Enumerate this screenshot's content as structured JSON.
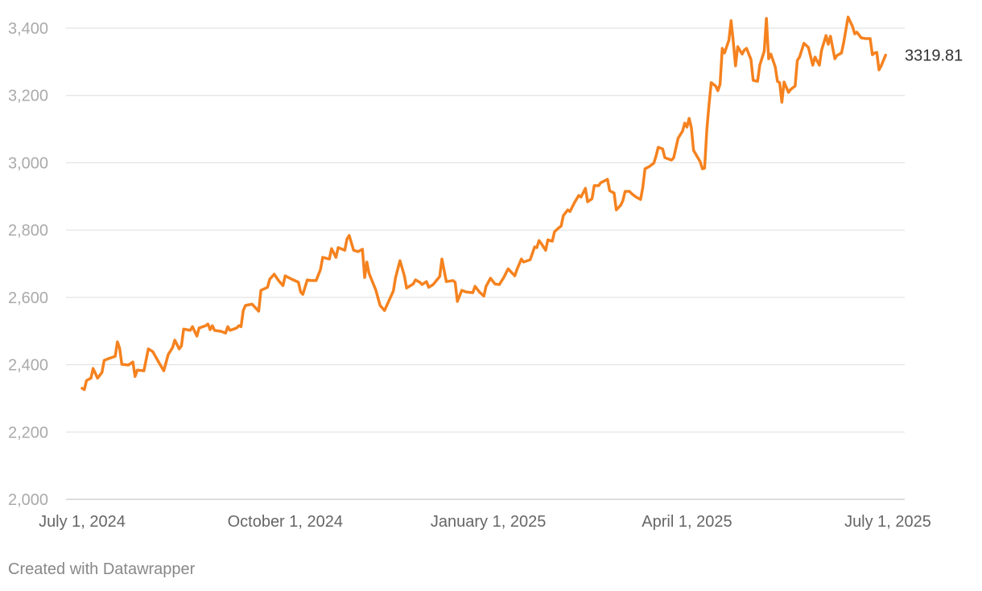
{
  "chart_data": {
    "type": "line",
    "credit": "Created with Datawrapper",
    "x": [
      "2024-07-01",
      "2024-07-02",
      "2024-07-03",
      "2024-07-05",
      "2024-07-06",
      "2024-07-08",
      "2024-07-10",
      "2024-07-11",
      "2024-07-13",
      "2024-07-16",
      "2024-07-17",
      "2024-07-18",
      "2024-07-19",
      "2024-07-22",
      "2024-07-24",
      "2024-07-25",
      "2024-07-26",
      "2024-07-29",
      "2024-07-31",
      "2024-08-02",
      "2024-08-05",
      "2024-08-07",
      "2024-08-09",
      "2024-08-11",
      "2024-08-12",
      "2024-08-14",
      "2024-08-15",
      "2024-08-16",
      "2024-08-19",
      "2024-08-20",
      "2024-08-22",
      "2024-08-23",
      "2024-08-26",
      "2024-08-27",
      "2024-08-28",
      "2024-08-29",
      "2024-08-30",
      "2024-09-02",
      "2024-09-04",
      "2024-09-05",
      "2024-09-06",
      "2024-09-09",
      "2024-09-10",
      "2024-09-11",
      "2024-09-12",
      "2024-09-13",
      "2024-09-16",
      "2024-09-19",
      "2024-09-20",
      "2024-09-23",
      "2024-09-24",
      "2024-09-26",
      "2024-09-28",
      "2024-09-30",
      "2024-10-01",
      "2024-10-04",
      "2024-10-07",
      "2024-10-08",
      "2024-10-09",
      "2024-10-11",
      "2024-10-13",
      "2024-10-15",
      "2024-10-17",
      "2024-10-18",
      "2024-10-21",
      "2024-10-22",
      "2024-10-24",
      "2024-10-25",
      "2024-10-28",
      "2024-10-29",
      "2024-10-30",
      "2024-11-01",
      "2024-11-03",
      "2024-11-05",
      "2024-11-06",
      "2024-11-07",
      "2024-11-08",
      "2024-11-11",
      "2024-11-13",
      "2024-11-15",
      "2024-11-17",
      "2024-11-19",
      "2024-11-20",
      "2024-11-22",
      "2024-11-24",
      "2024-11-25",
      "2024-11-28",
      "2024-11-29",
      "2024-12-01",
      "2024-12-02",
      "2024-12-04",
      "2024-12-05",
      "2024-12-07",
      "2024-12-10",
      "2024-12-11",
      "2024-12-13",
      "2024-12-16",
      "2024-12-17",
      "2024-12-18",
      "2024-12-20",
      "2024-12-22",
      "2024-12-25",
      "2024-12-26",
      "2024-12-28",
      "2024-12-30",
      "2024-12-31",
      "2025-01-02",
      "2025-01-04",
      "2025-01-06",
      "2025-01-08",
      "2025-01-10",
      "2025-01-13",
      "2025-01-14",
      "2025-01-16",
      "2025-01-17",
      "2025-01-20",
      "2025-01-22",
      "2025-01-23",
      "2025-01-24",
      "2025-01-25",
      "2025-01-27",
      "2025-01-28",
      "2025-01-30",
      "2025-01-31",
      "2025-02-02",
      "2025-02-03",
      "2025-02-04",
      "2025-02-06",
      "2025-02-07",
      "2025-02-09",
      "2025-02-11",
      "2025-02-12",
      "2025-02-14",
      "2025-02-15",
      "2025-02-17",
      "2025-02-18",
      "2025-02-20",
      "2025-02-21",
      "2025-02-22",
      "2025-02-24",
      "2025-02-25",
      "2025-02-27",
      "2025-02-28",
      "2025-03-02",
      "2025-03-03",
      "2025-03-04",
      "2025-03-06",
      "2025-03-07",
      "2025-03-09",
      "2025-03-11",
      "2025-03-12",
      "2025-03-13",
      "2025-03-15",
      "2025-03-17",
      "2025-03-18",
      "2025-03-19",
      "2025-03-21",
      "2025-03-22",
      "2025-03-25",
      "2025-03-26",
      "2025-03-28",
      "2025-03-30",
      "2025-03-31",
      "2025-04-01",
      "2025-04-02",
      "2025-04-03",
      "2025-04-04",
      "2025-04-07",
      "2025-04-08",
      "2025-04-09",
      "2025-04-10",
      "2025-04-11",
      "2025-04-12",
      "2025-04-14",
      "2025-04-15",
      "2025-04-16",
      "2025-04-17",
      "2025-04-18",
      "2025-04-20",
      "2025-04-21",
      "2025-04-22",
      "2025-04-23",
      "2025-04-24",
      "2025-04-26",
      "2025-04-27",
      "2025-04-28",
      "2025-04-30",
      "2025-05-01",
      "2025-05-03",
      "2025-05-04",
      "2025-05-06",
      "2025-05-07",
      "2025-05-08",
      "2025-05-09",
      "2025-05-11",
      "2025-05-12",
      "2025-05-13",
      "2025-05-14",
      "2025-05-15",
      "2025-05-17",
      "2025-05-18",
      "2025-05-20",
      "2025-05-21",
      "2025-05-22",
      "2025-05-24",
      "2025-05-26",
      "2025-05-28",
      "2025-05-29",
      "2025-05-31",
      "2025-06-01",
      "2025-06-03",
      "2025-06-04",
      "2025-06-05",
      "2025-06-07",
      "2025-06-08",
      "2025-06-10",
      "2025-06-11",
      "2025-06-13",
      "2025-06-15",
      "2025-06-16",
      "2025-06-17",
      "2025-06-19",
      "2025-06-21",
      "2025-06-23",
      "2025-06-24",
      "2025-06-25",
      "2025-06-26",
      "2025-06-27",
      "2025-06-28",
      "2025-06-29",
      "2025-06-30"
    ],
    "series": [
      {
        "color": "#f5821f",
        "values": [
          2330,
          2326,
          2353,
          2360,
          2389,
          2360,
          2377,
          2413,
          2418,
          2425,
          2468,
          2449,
          2401,
          2399,
          2408,
          2365,
          2384,
          2382,
          2447,
          2439,
          2404,
          2382,
          2430,
          2451,
          2473,
          2447,
          2456,
          2506,
          2502,
          2513,
          2485,
          2509,
          2516,
          2521,
          2504,
          2516,
          2502,
          2499,
          2494,
          2513,
          2502,
          2509,
          2516,
          2513,
          2561,
          2576,
          2580,
          2559,
          2621,
          2630,
          2654,
          2669,
          2650,
          2635,
          2664,
          2654,
          2645,
          2616,
          2609,
          2652,
          2650,
          2650,
          2683,
          2719,
          2714,
          2745,
          2719,
          2748,
          2740,
          2774,
          2784,
          2740,
          2736,
          2743,
          2659,
          2705,
          2671,
          2623,
          2576,
          2561,
          2590,
          2619,
          2659,
          2709,
          2664,
          2628,
          2640,
          2652,
          2645,
          2638,
          2647,
          2630,
          2638,
          2662,
          2714,
          2647,
          2650,
          2645,
          2588,
          2621,
          2616,
          2614,
          2633,
          2616,
          2604,
          2633,
          2657,
          2640,
          2638,
          2659,
          2685,
          2664,
          2683,
          2714,
          2705,
          2712,
          2750,
          2748,
          2769,
          2760,
          2740,
          2771,
          2767,
          2795,
          2807,
          2812,
          2843,
          2860,
          2855,
          2881,
          2903,
          2898,
          2924,
          2884,
          2893,
          2932,
          2932,
          2941,
          2944,
          2951,
          2917,
          2910,
          2860,
          2874,
          2888,
          2915,
          2915,
          2908,
          2898,
          2891,
          2927,
          2982,
          2989,
          2999,
          3020,
          3046,
          3041,
          3015,
          3008,
          3015,
          3073,
          3094,
          3118,
          3106,
          3132,
          3104,
          3037,
          3003,
          2982,
          2984,
          3097,
          3173,
          3238,
          3228,
          3214,
          3233,
          3340,
          3326,
          3364,
          3422,
          3359,
          3288,
          3345,
          3323,
          3335,
          3340,
          3307,
          3245,
          3242,
          3290,
          3331,
          3429,
          3309,
          3323,
          3285,
          3242,
          3238,
          3180,
          3240,
          3209,
          3218,
          3228,
          3304,
          3314,
          3355,
          3343,
          3290,
          3314,
          3290,
          3335,
          3378,
          3352,
          3376,
          3309,
          3319,
          3326,
          3357,
          3433,
          3405,
          3383,
          3388,
          3371,
          3369,
          3369,
          3321,
          3326,
          3328,
          3276,
          3288,
          3304,
          3319.81
        ]
      }
    ],
    "xlim": [
      "2024-07-01",
      "2025-07-01"
    ],
    "xticks": [
      {
        "value": "2024-07-01",
        "label": "July 1, 2024"
      },
      {
        "value": "2024-10-01",
        "label": "October 1, 2024"
      },
      {
        "value": "2025-01-01",
        "label": "January 1, 2025"
      },
      {
        "value": "2025-04-01",
        "label": "April 1, 2025"
      },
      {
        "value": "2025-07-01",
        "label": "July 1, 2025"
      }
    ],
    "ylim": [
      2000,
      3400
    ],
    "yticks": [
      {
        "value": 2000,
        "label": "2,000"
      },
      {
        "value": 2200,
        "label": "2,200"
      },
      {
        "value": 2400,
        "label": "2,400"
      },
      {
        "value": 2600,
        "label": "2,600"
      },
      {
        "value": 2800,
        "label": "2,800"
      },
      {
        "value": 3000,
        "label": "3,000"
      },
      {
        "value": 3200,
        "label": "3,200"
      },
      {
        "value": 3400,
        "label": "3,400"
      }
    ],
    "grid": true
  }
}
